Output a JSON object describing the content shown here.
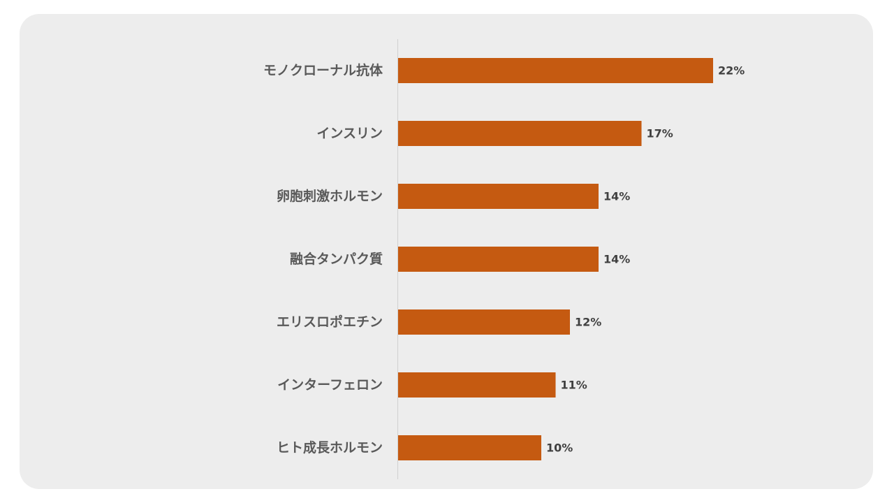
{
  "chart_data": {
    "type": "bar",
    "orientation": "horizontal",
    "categories": [
      "モノクローナル抗体",
      "インスリン",
      "卵胞刺激ホルモン",
      "融合タンパク質",
      "エリスロポエチン",
      "インターフェロン",
      "ヒト成長ホルモン"
    ],
    "values": [
      22,
      17,
      14,
      14,
      12,
      11,
      10
    ],
    "value_labels": [
      "22%",
      "17%",
      "14%",
      "14%",
      "12%",
      "11%",
      "10%"
    ],
    "unit": "%",
    "xlim": [
      0,
      30
    ],
    "grid": false,
    "legend": "none",
    "colors": {
      "bar": "#c55a11",
      "axis": "#d0d0d0",
      "background": "#ededed"
    }
  }
}
